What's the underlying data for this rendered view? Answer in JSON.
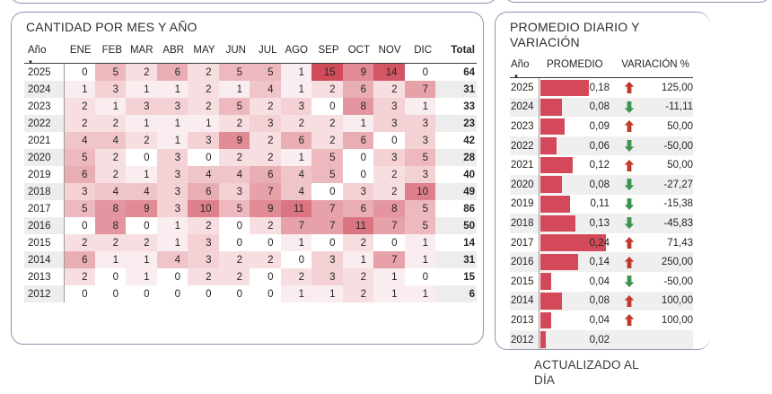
{
  "footer": {
    "updated_label": "ACTUALIZADO AL DÍA"
  },
  "colors": {
    "heat_min": "#ffffff",
    "heat_max": "#d04c5b",
    "bar": "#d4495a",
    "arrow_up": "#c0392b",
    "arrow_down": "#3d9450",
    "panel_border": "#9094b0",
    "row_stripe": "#ededed"
  },
  "chart_data": [
    {
      "type": "heatmap",
      "title": "CANTIDAD POR MES Y AÑO",
      "row_label": "Año",
      "columns": [
        "ENE",
        "FEB",
        "MAR",
        "ABR",
        "MAY",
        "JUN",
        "JUL",
        "AGO",
        "SEP",
        "OCT",
        "NOV",
        "DIC"
      ],
      "total_label": "Total",
      "color_scale": {
        "min": 0,
        "max": 15,
        "min_color": "#ffffff",
        "max_color": "#d04c5b"
      },
      "rows": [
        {
          "year": "2025",
          "values": [
            0,
            5,
            2,
            6,
            2,
            5,
            5,
            1,
            15,
            9,
            14,
            0
          ],
          "total": 64
        },
        {
          "year": "2024",
          "values": [
            1,
            3,
            1,
            1,
            2,
            1,
            4,
            1,
            2,
            6,
            2,
            7
          ],
          "total": 31
        },
        {
          "year": "2023",
          "values": [
            2,
            1,
            3,
            3,
            2,
            5,
            2,
            3,
            0,
            8,
            3,
            1
          ],
          "total": 33
        },
        {
          "year": "2022",
          "values": [
            2,
            2,
            1,
            1,
            1,
            2,
            3,
            2,
            2,
            1,
            3,
            3
          ],
          "total": 23
        },
        {
          "year": "2021",
          "values": [
            4,
            4,
            2,
            1,
            3,
            9,
            2,
            6,
            2,
            6,
            0,
            3
          ],
          "total": 42
        },
        {
          "year": "2020",
          "values": [
            5,
            2,
            0,
            3,
            0,
            2,
            2,
            1,
            5,
            0,
            3,
            5
          ],
          "total": 28
        },
        {
          "year": "2019",
          "values": [
            6,
            2,
            1,
            3,
            4,
            4,
            6,
            4,
            5,
            0,
            2,
            3
          ],
          "total": 40
        },
        {
          "year": "2018",
          "values": [
            3,
            4,
            4,
            3,
            6,
            3,
            7,
            4,
            0,
            3,
            2,
            10
          ],
          "total": 49
        },
        {
          "year": "2017",
          "values": [
            5,
            8,
            9,
            3,
            10,
            5,
            9,
            11,
            7,
            6,
            8,
            5
          ],
          "total": 86
        },
        {
          "year": "2016",
          "values": [
            0,
            8,
            0,
            1,
            2,
            0,
            2,
            7,
            7,
            11,
            7,
            5
          ],
          "total": 50
        },
        {
          "year": "2015",
          "values": [
            2,
            2,
            2,
            1,
            3,
            0,
            0,
            1,
            0,
            2,
            0,
            1
          ],
          "total": 14
        },
        {
          "year": "2014",
          "values": [
            6,
            1,
            1,
            4,
            3,
            2,
            2,
            0,
            3,
            1,
            7,
            1
          ],
          "total": 31
        },
        {
          "year": "2013",
          "values": [
            2,
            0,
            1,
            0,
            2,
            2,
            0,
            2,
            3,
            2,
            1,
            0
          ],
          "total": 15
        },
        {
          "year": "2012",
          "values": [
            0,
            0,
            0,
            0,
            0,
            0,
            0,
            1,
            1,
            2,
            1,
            1
          ],
          "total": 6
        }
      ]
    },
    {
      "type": "table",
      "title": "PROMEDIO DIARIO Y VARIACIÓN",
      "row_label": "Año",
      "promedio_label": "PROMEDIO",
      "variacion_label": "VARIACIÓN %",
      "bar_max": 0.24,
      "rows": [
        {
          "year": "2025",
          "promedio": "0,18",
          "value": 0.18,
          "trend": "up",
          "variacion": "125,00"
        },
        {
          "year": "2024",
          "promedio": "0,08",
          "value": 0.08,
          "trend": "down",
          "variacion": "-11,11"
        },
        {
          "year": "2023",
          "promedio": "0,09",
          "value": 0.09,
          "trend": "up",
          "variacion": "50,00"
        },
        {
          "year": "2022",
          "promedio": "0,06",
          "value": 0.06,
          "trend": "down",
          "variacion": "-50,00"
        },
        {
          "year": "2021",
          "promedio": "0,12",
          "value": 0.12,
          "trend": "up",
          "variacion": "50,00"
        },
        {
          "year": "2020",
          "promedio": "0,08",
          "value": 0.08,
          "trend": "down",
          "variacion": "-27,27"
        },
        {
          "year": "2019",
          "promedio": "0,11",
          "value": 0.11,
          "trend": "down",
          "variacion": "-15,38"
        },
        {
          "year": "2018",
          "promedio": "0,13",
          "value": 0.13,
          "trend": "down",
          "variacion": "-45,83"
        },
        {
          "year": "2017",
          "promedio": "0,24",
          "value": 0.24,
          "trend": "up",
          "variacion": "71,43"
        },
        {
          "year": "2016",
          "promedio": "0,14",
          "value": 0.14,
          "trend": "up",
          "variacion": "250,00"
        },
        {
          "year": "2015",
          "promedio": "0,04",
          "value": 0.04,
          "trend": "down",
          "variacion": "-50,00"
        },
        {
          "year": "2014",
          "promedio": "0,08",
          "value": 0.08,
          "trend": "up",
          "variacion": "100,00"
        },
        {
          "year": "2013",
          "promedio": "0,04",
          "value": 0.04,
          "trend": "up",
          "variacion": "100,00"
        },
        {
          "year": "2012",
          "promedio": "0,02",
          "value": 0.02,
          "trend": null,
          "variacion": ""
        }
      ]
    }
  ]
}
